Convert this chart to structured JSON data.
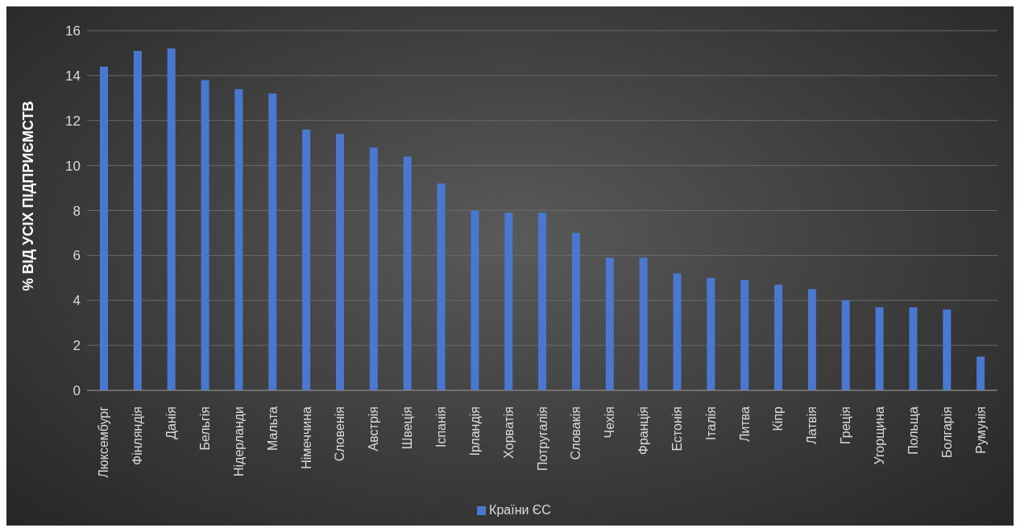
{
  "chart_data": {
    "type": "bar",
    "ylabel": "% ВІД УСІХ ПІДПРИЄМСТВ",
    "categories": [
      "Люксембург",
      "Фінляндія",
      "Данія",
      "Бельгія",
      "Нідерланди",
      "Мальта",
      "Німеччина",
      "Словенія",
      "Австрія",
      "Швеція",
      "Іспанія",
      "Ірландія",
      "Хорватія",
      "Потругалія",
      "Словакія",
      "Чехія",
      "Франція",
      "Естонія",
      "Італія",
      "Литва",
      "Кіпр",
      "Латвія",
      "Греція",
      "Угорщина",
      "Польща",
      "Болгарія",
      "Румунія"
    ],
    "series": [
      {
        "name": "Країни ЄС",
        "color": "#4a78d0",
        "values": [
          14.4,
          15.1,
          15.2,
          13.8,
          13.4,
          13.2,
          11.6,
          11.4,
          10.8,
          10.4,
          9.2,
          8.0,
          7.9,
          7.9,
          7.0,
          5.9,
          5.9,
          5.2,
          5.0,
          4.9,
          4.7,
          4.5,
          4.0,
          3.7,
          3.7,
          3.6,
          1.5
        ]
      }
    ],
    "ylim": [
      0,
      16
    ],
    "yticks": [
      0,
      2,
      4,
      6,
      8,
      10,
      12,
      14,
      16
    ],
    "grid": "y",
    "legend": "bottom"
  }
}
